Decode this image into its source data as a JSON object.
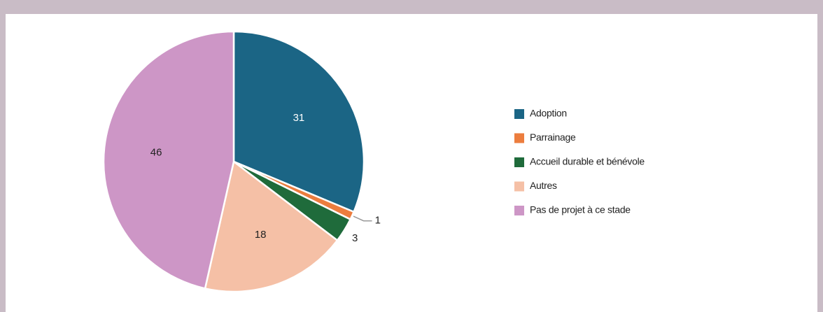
{
  "chart_data": {
    "type": "pie",
    "categories": [
      "Adoption",
      "Parrainage",
      "Accueil durable et bénévole",
      "Autres",
      "Pas de projet à ce stade"
    ],
    "values": [
      31,
      1,
      3,
      18,
      46
    ],
    "colors": [
      "#1b6585",
      "#ec7d3e",
      "#1f6b3b",
      "#f5c0a6",
      "#cd96c6"
    ],
    "legend": "right"
  }
}
